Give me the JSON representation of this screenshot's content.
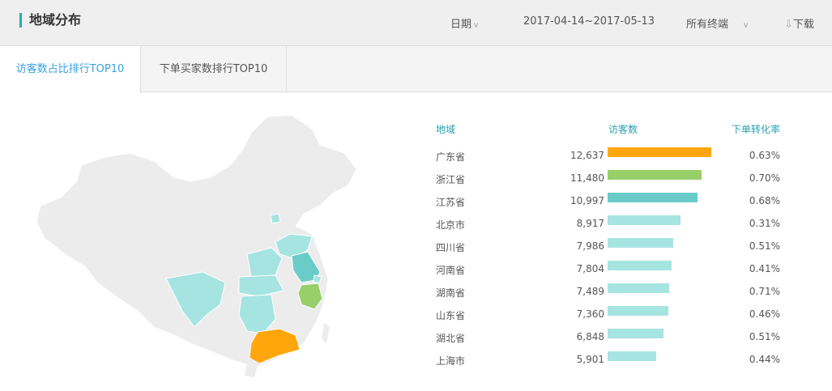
{
  "header": {
    "title": "地域分布",
    "date_label": "日期",
    "date_range": "2017-04-14~2017-05-13",
    "terminal": "所有终端",
    "download": "下载"
  },
  "tabs": [
    {
      "label": "访客数占比排行TOP10",
      "active": true
    },
    {
      "label": "下单买家数排行TOP10",
      "active": false
    }
  ],
  "table": {
    "columns": [
      "地域",
      "访客数",
      "下单转化率"
    ],
    "max_visitors": 12637,
    "rows": [
      {
        "region": "广东省",
        "visitors": "12,637",
        "value": 12637,
        "rate": "0.63%",
        "color": "#ffa60d"
      },
      {
        "region": "浙江省",
        "visitors": "11,480",
        "value": 11480,
        "rate": "0.70%",
        "color": "#97cf68"
      },
      {
        "region": "江苏省",
        "visitors": "10,997",
        "value": 10997,
        "rate": "0.68%",
        "color": "#6accc9"
      },
      {
        "region": "北京市",
        "visitors": "8,917",
        "value": 8917,
        "rate": "0.31%",
        "color": "#a6e4e2"
      },
      {
        "region": "四川省",
        "visitors": "7,986",
        "value": 7986,
        "rate": "0.51%",
        "color": "#a6e4e2"
      },
      {
        "region": "河南省",
        "visitors": "7,804",
        "value": 7804,
        "rate": "0.41%",
        "color": "#a6e4e2"
      },
      {
        "region": "湖南省",
        "visitors": "7,489",
        "value": 7489,
        "rate": "0.71%",
        "color": "#a6e4e2"
      },
      {
        "region": "山东省",
        "visitors": "7,360",
        "value": 7360,
        "rate": "0.46%",
        "color": "#a6e4e2"
      },
      {
        "region": "湖北省",
        "visitors": "6,848",
        "value": 6848,
        "rate": "0.51%",
        "color": "#a6e4e2"
      },
      {
        "region": "上海市",
        "visitors": "5,901",
        "value": 5901,
        "rate": "0.44%",
        "color": "#a6e4e2"
      }
    ]
  }
}
